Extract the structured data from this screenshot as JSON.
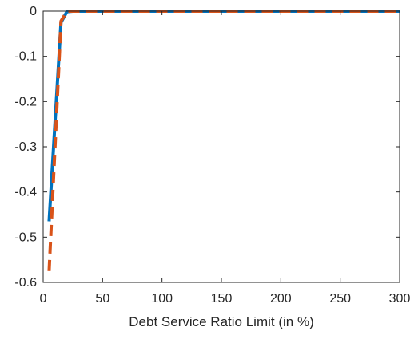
{
  "chart_data": {
    "type": "line",
    "title": "",
    "xlabel": "Debt Service Ratio Limit (in %)",
    "ylabel": "",
    "xlim": [
      0,
      300
    ],
    "ylim": [
      -0.6,
      0
    ],
    "x_ticks": [
      0,
      50,
      100,
      150,
      200,
      250,
      300
    ],
    "x_tick_labels": [
      "0",
      "50",
      "100",
      "150",
      "200",
      "250",
      "300"
    ],
    "y_ticks": [
      0,
      -0.1,
      -0.2,
      -0.3,
      -0.4,
      -0.5,
      -0.6
    ],
    "y_tick_labels": [
      "0",
      "-0.1",
      "-0.2",
      "-0.3",
      "-0.4",
      "-0.5",
      "-0.6"
    ],
    "grid": false,
    "box": true,
    "series": [
      {
        "color": "#0072BD",
        "line_style": "solid",
        "x": [
          5,
          15,
          20,
          25,
          50,
          100,
          150,
          200,
          250,
          300
        ],
        "y": [
          -0.465,
          -0.025,
          -0.001,
          0,
          0,
          0,
          0,
          0,
          0,
          0
        ]
      },
      {
        "color": "#D95319",
        "line_style": "dashed",
        "x": [
          5,
          15,
          20,
          25,
          50,
          100,
          150,
          200,
          250,
          300
        ],
        "y": [
          -0.575,
          -0.022,
          0,
          0,
          0,
          0,
          0,
          0,
          0,
          0
        ]
      }
    ]
  }
}
